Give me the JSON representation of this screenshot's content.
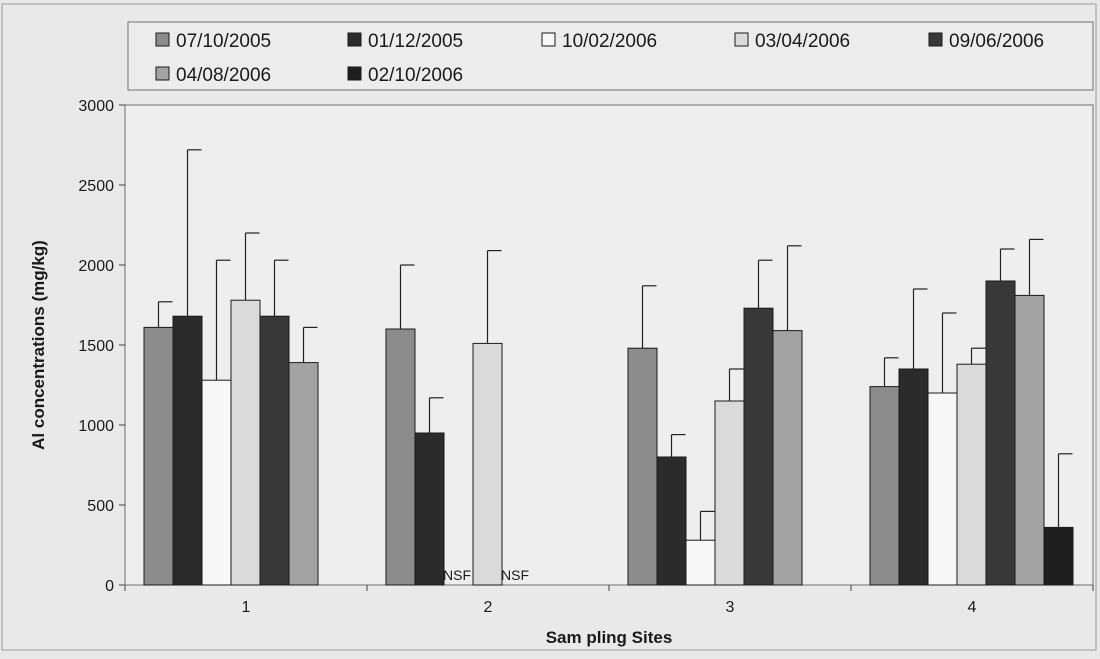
{
  "chart_data": {
    "type": "bar",
    "xlabel": "Sam pling Sites",
    "ylabel": "Al concentrations (mg/kg)",
    "ylim": [
      0,
      3000
    ],
    "yticks": [
      0,
      500,
      1000,
      1500,
      2000,
      2500,
      3000
    ],
    "categories": [
      "1",
      "2",
      "3",
      "4"
    ],
    "legend_position": "top",
    "grid": false,
    "missing_label": "NSF",
    "series": [
      {
        "name": "07/10/2005",
        "color": "#8c8c8c",
        "values": [
          1610,
          1600,
          1480,
          1240
        ],
        "errors": [
          160,
          400,
          390,
          180
        ]
      },
      {
        "name": "01/12/2005",
        "color": "#2b2b2b",
        "values": [
          1680,
          950,
          800,
          1350
        ],
        "errors": [
          1040,
          220,
          140,
          500
        ]
      },
      {
        "name": "10/02/2006",
        "color": "#f7f7f7",
        "values": [
          1280,
          null,
          280,
          1200
        ],
        "errors": [
          750,
          null,
          180,
          500
        ]
      },
      {
        "name": "03/04/2006",
        "color": "#dadada",
        "values": [
          1780,
          1510,
          1150,
          1380
        ],
        "errors": [
          420,
          580,
          200,
          100
        ]
      },
      {
        "name": "09/06/2006",
        "color": "#383838",
        "values": [
          1680,
          null,
          1730,
          1900
        ],
        "errors": [
          350,
          null,
          300,
          200
        ]
      },
      {
        "name": "04/08/2006",
        "color": "#a3a3a3",
        "values": [
          1390,
          null,
          1590,
          1810
        ],
        "errors": [
          220,
          null,
          530,
          350
        ]
      },
      {
        "name": "02/10/2006",
        "color": "#1f1f1f",
        "values": [
          null,
          null,
          null,
          360
        ],
        "errors": [
          null,
          null,
          null,
          460
        ]
      }
    ]
  }
}
